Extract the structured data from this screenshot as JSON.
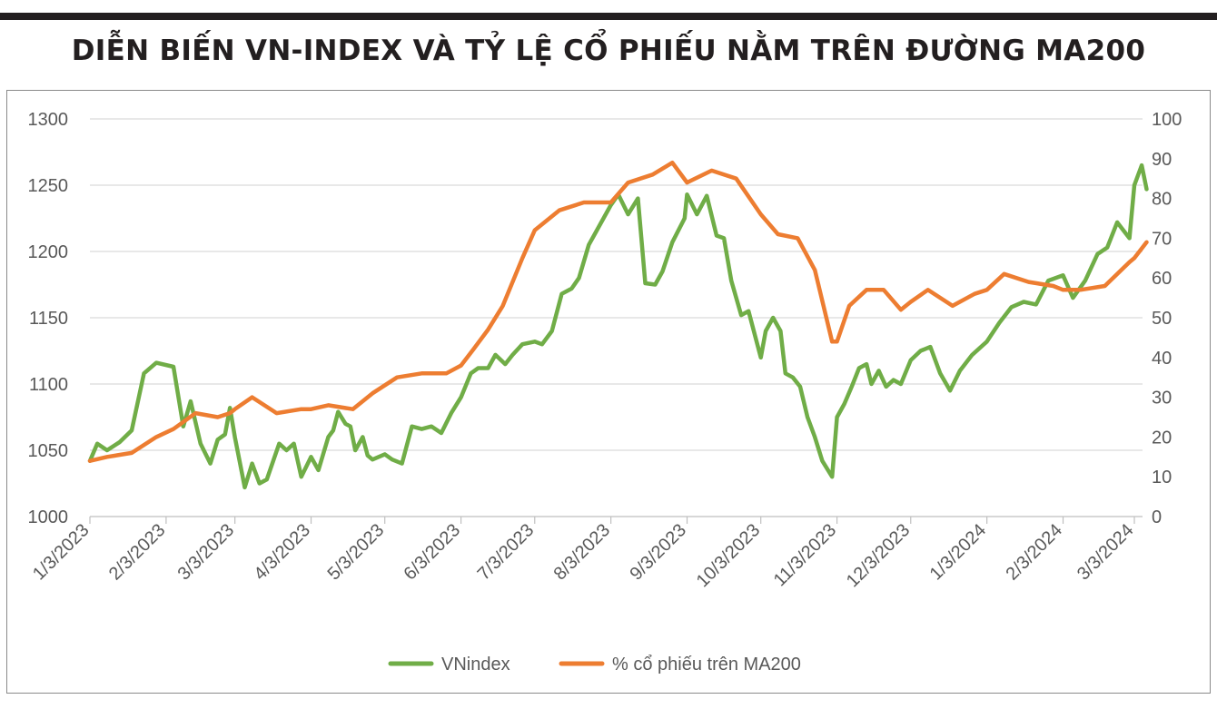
{
  "title": "DIỄN BIẾN VN-INDEX VÀ TỶ LỆ CỔ PHIẾU NẰM TRÊN ĐƯỜNG MA200",
  "colors": {
    "vnindex": "#70ad47",
    "ma200": "#ed7d31",
    "grid": "#d9d9d9",
    "axis": "#bfbfbf",
    "text": "#595959",
    "bar": "#231f20"
  },
  "chart_data": {
    "type": "line",
    "title": "DIỄN BIẾN VN-INDEX VÀ TỶ LỆ CỔ PHIẾU NẰM TRÊN ĐƯỜNG MA200",
    "xlabel": "",
    "ylabel": "",
    "x_ticks": [
      "1/3/2023",
      "2/3/2023",
      "3/3/2023",
      "4/3/2023",
      "5/3/2023",
      "6/3/2023",
      "7/3/2023",
      "8/3/2023",
      "9/3/2023",
      "10/3/2023",
      "11/3/2023",
      "12/3/2023",
      "1/3/2024",
      "2/3/2024",
      "3/3/2024"
    ],
    "y_left": {
      "ylim": [
        1000,
        1300
      ],
      "ticks": [
        "1000",
        "1050",
        "1100",
        "1150",
        "1200",
        "1250",
        "1300"
      ]
    },
    "y_right": {
      "ylim": [
        0,
        100
      ],
      "ticks": [
        "0",
        "10",
        "20",
        "30",
        "40",
        "50",
        "60",
        "70",
        "80",
        "90",
        "100"
      ]
    },
    "grid": true,
    "legend_position": "bottom",
    "series": [
      {
        "name": "VNindex",
        "axis": "left",
        "x": [
          "2023-01-03",
          "2023-01-06",
          "2023-01-10",
          "2023-01-15",
          "2023-01-20",
          "2023-01-25",
          "2023-01-30",
          "2023-02-06",
          "2023-02-10",
          "2023-02-13",
          "2023-02-17",
          "2023-02-21",
          "2023-02-24",
          "2023-02-27",
          "2023-03-01",
          "2023-03-03",
          "2023-03-07",
          "2023-03-10",
          "2023-03-13",
          "2023-03-16",
          "2023-03-21",
          "2023-03-24",
          "2023-03-27",
          "2023-03-30",
          "2023-04-03",
          "2023-04-06",
          "2023-04-10",
          "2023-04-12",
          "2023-04-14",
          "2023-04-17",
          "2023-04-19",
          "2023-04-21",
          "2023-04-24",
          "2023-04-26",
          "2023-04-28",
          "2023-05-03",
          "2023-05-06",
          "2023-05-10",
          "2023-05-14",
          "2023-05-18",
          "2023-05-22",
          "2023-05-26",
          "2023-05-30",
          "2023-06-03",
          "2023-06-07",
          "2023-06-10",
          "2023-06-14",
          "2023-06-17",
          "2023-06-21",
          "2023-06-24",
          "2023-06-28",
          "2023-07-03",
          "2023-07-06",
          "2023-07-10",
          "2023-07-14",
          "2023-07-18",
          "2023-07-21",
          "2023-07-25",
          "2023-07-28",
          "2023-08-03",
          "2023-08-06",
          "2023-08-10",
          "2023-08-14",
          "2023-08-17",
          "2023-08-21",
          "2023-08-24",
          "2023-08-28",
          "2023-09-02",
          "2023-09-03",
          "2023-09-07",
          "2023-09-11",
          "2023-09-15",
          "2023-09-18",
          "2023-09-21",
          "2023-09-25",
          "2023-09-28",
          "2023-10-03",
          "2023-10-05",
          "2023-10-08",
          "2023-10-11",
          "2023-10-13",
          "2023-10-16",
          "2023-10-19",
          "2023-10-22",
          "2023-10-25",
          "2023-10-28",
          "2023-11-01",
          "2023-11-03",
          "2023-11-06",
          "2023-11-09",
          "2023-11-12",
          "2023-11-15",
          "2023-11-17",
          "2023-11-20",
          "2023-11-23",
          "2023-11-26",
          "2023-11-29",
          "2023-12-03",
          "2023-12-07",
          "2023-12-11",
          "2023-12-15",
          "2023-12-19",
          "2023-12-23",
          "2023-12-28",
          "2024-01-03",
          "2024-01-08",
          "2024-01-13",
          "2024-01-18",
          "2024-01-23",
          "2024-01-28",
          "2024-02-03",
          "2024-02-07",
          "2024-02-12",
          "2024-02-17",
          "2024-02-21",
          "2024-02-25",
          "2024-03-01",
          "2024-03-03",
          "2024-03-06",
          "2024-03-08"
        ],
        "values": [
          1042,
          1055,
          1050,
          1056,
          1065,
          1108,
          1116,
          1113,
          1068,
          1087,
          1055,
          1040,
          1058,
          1062,
          1082,
          1060,
          1022,
          1040,
          1025,
          1028,
          1055,
          1050,
          1055,
          1030,
          1045,
          1035,
          1060,
          1065,
          1079,
          1070,
          1068,
          1050,
          1060,
          1046,
          1043,
          1047,
          1043,
          1040,
          1068,
          1066,
          1068,
          1063,
          1078,
          1090,
          1108,
          1112,
          1112,
          1122,
          1115,
          1122,
          1130,
          1132,
          1130,
          1140,
          1168,
          1172,
          1180,
          1205,
          1215,
          1235,
          1243,
          1228,
          1240,
          1176,
          1175,
          1185,
          1207,
          1225,
          1243,
          1228,
          1242,
          1212,
          1210,
          1178,
          1152,
          1155,
          1120,
          1140,
          1150,
          1140,
          1108,
          1105,
          1098,
          1075,
          1060,
          1042,
          1030,
          1075,
          1085,
          1098,
          1112,
          1115,
          1100,
          1110,
          1098,
          1103,
          1100,
          1118,
          1125,
          1128,
          1108,
          1095,
          1110,
          1122,
          1132,
          1146,
          1158,
          1162,
          1160,
          1178,
          1182,
          1165,
          1178,
          1198,
          1203,
          1222,
          1210,
          1250,
          1265,
          1247
        ]
      },
      {
        "name": "% cổ phiếu trên MA200",
        "axis": "right",
        "x": [
          "2023-01-03",
          "2023-01-10",
          "2023-01-20",
          "2023-01-30",
          "2023-02-06",
          "2023-02-15",
          "2023-02-24",
          "2023-03-01",
          "2023-03-03",
          "2023-03-10",
          "2023-03-20",
          "2023-03-30",
          "2023-04-03",
          "2023-04-10",
          "2023-04-20",
          "2023-04-28",
          "2023-05-08",
          "2023-05-18",
          "2023-05-28",
          "2023-06-03",
          "2023-06-08",
          "2023-06-14",
          "2023-06-20",
          "2023-06-28",
          "2023-07-03",
          "2023-07-13",
          "2023-07-23",
          "2023-08-03",
          "2023-08-10",
          "2023-08-20",
          "2023-08-28",
          "2023-09-03",
          "2023-09-13",
          "2023-09-23",
          "2023-10-03",
          "2023-10-10",
          "2023-10-18",
          "2023-10-25",
          "2023-11-01",
          "2023-11-03",
          "2023-11-08",
          "2023-11-15",
          "2023-11-22",
          "2023-11-29",
          "2023-12-03",
          "2023-12-10",
          "2023-12-20",
          "2023-12-29",
          "2024-01-03",
          "2024-01-10",
          "2024-01-20",
          "2024-01-30",
          "2024-02-03",
          "2024-02-10",
          "2024-02-20",
          "2024-03-01",
          "2024-03-03",
          "2024-03-08"
        ],
        "values": [
          14,
          15,
          16,
          20,
          22,
          26,
          25,
          26,
          27,
          30,
          26,
          27,
          27,
          28,
          27,
          31,
          35,
          36,
          36,
          38,
          42,
          47,
          53,
          65,
          72,
          77,
          79,
          79,
          84,
          86,
          89,
          84,
          87,
          85,
          76,
          71,
          70,
          62,
          44,
          44,
          53,
          57,
          57,
          52,
          54,
          57,
          53,
          56,
          57,
          61,
          59,
          58,
          57,
          57,
          58,
          64,
          65,
          69
        ]
      }
    ]
  }
}
